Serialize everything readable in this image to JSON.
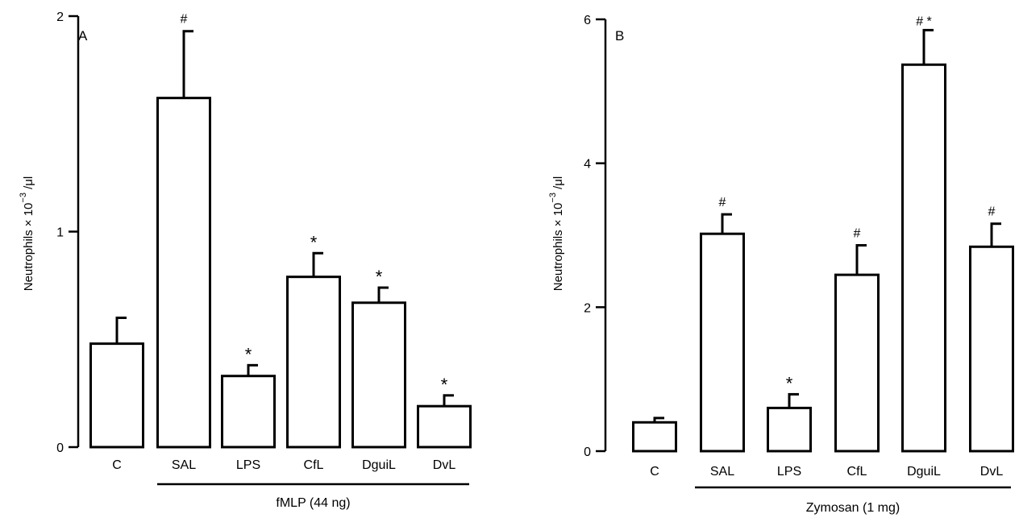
{
  "chart_data": [
    {
      "panel": "A",
      "type": "bar",
      "ylabel": "Neutrophils × 10",
      "ylabel_exponent": "−3",
      "ylabel_unit": " /μl",
      "ylim": [
        0,
        2
      ],
      "yticks": [
        0,
        1,
        2
      ],
      "categories": [
        "C",
        "SAL",
        "LPS",
        "CfL",
        "DguiL",
        "DvL"
      ],
      "values": [
        0.48,
        1.62,
        0.33,
        0.79,
        0.67,
        0.19
      ],
      "errors": [
        0.12,
        0.31,
        0.05,
        0.11,
        0.07,
        0.05
      ],
      "annotations": [
        "",
        "#",
        "*",
        "*",
        "*",
        "*"
      ],
      "group_label": "fMLP (44 ng)",
      "group_span": [
        "SAL",
        "DvL"
      ]
    },
    {
      "panel": "B",
      "type": "bar",
      "ylabel": "Neutrophils × 10",
      "ylabel_exponent": "−3",
      "ylabel_unit": " /μl",
      "ylim": [
        0,
        6
      ],
      "yticks": [
        0,
        2,
        4,
        6
      ],
      "categories": [
        "C",
        "SAL",
        "LPS",
        "CfL",
        "DguiL",
        "DvL"
      ],
      "values": [
        0.4,
        3.02,
        0.6,
        2.45,
        5.37,
        2.84
      ],
      "errors": [
        0.06,
        0.27,
        0.19,
        0.41,
        0.48,
        0.32
      ],
      "annotations": [
        "",
        "#",
        "*",
        "#",
        "# *",
        "#"
      ],
      "group_label": "Zymosan (1 mg)",
      "group_span": [
        "SAL",
        "DvL"
      ]
    }
  ]
}
